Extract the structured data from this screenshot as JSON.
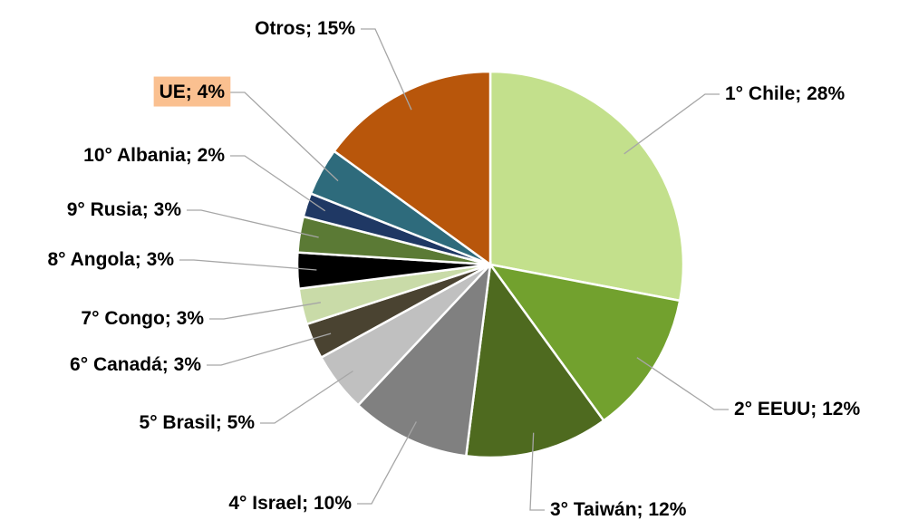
{
  "chart_data": {
    "type": "pie",
    "categories": [
      "1° Chile;",
      "2° EEUU;",
      "3° Taiwán;",
      "4° Israel;",
      "5° Brasil;",
      "6° Canadá;",
      "7° Congo;",
      "8° Angola;",
      "9° Rusia;",
      "10° Albania;",
      "UE;",
      "Otros;"
    ],
    "values": [
      28,
      12,
      12,
      10,
      5,
      3,
      3,
      3,
      3,
      2,
      4,
      15
    ],
    "value_labels": [
      "28%",
      "12%",
      "12%",
      "10%",
      "5%",
      "3%",
      "3%",
      "3%",
      "3%",
      "2%",
      "4%",
      "15%"
    ],
    "colors": [
      "#c3e08c",
      "#72a12e",
      "#4e6a1f",
      "#808080",
      "#c0c0c0",
      "#4a4331",
      "#c9dba8",
      "#000000",
      "#5b7a35",
      "#1f3864",
      "#2e6b7c",
      "#b8560b"
    ],
    "highlight": {
      "index": 10,
      "color": "#fac090"
    }
  }
}
